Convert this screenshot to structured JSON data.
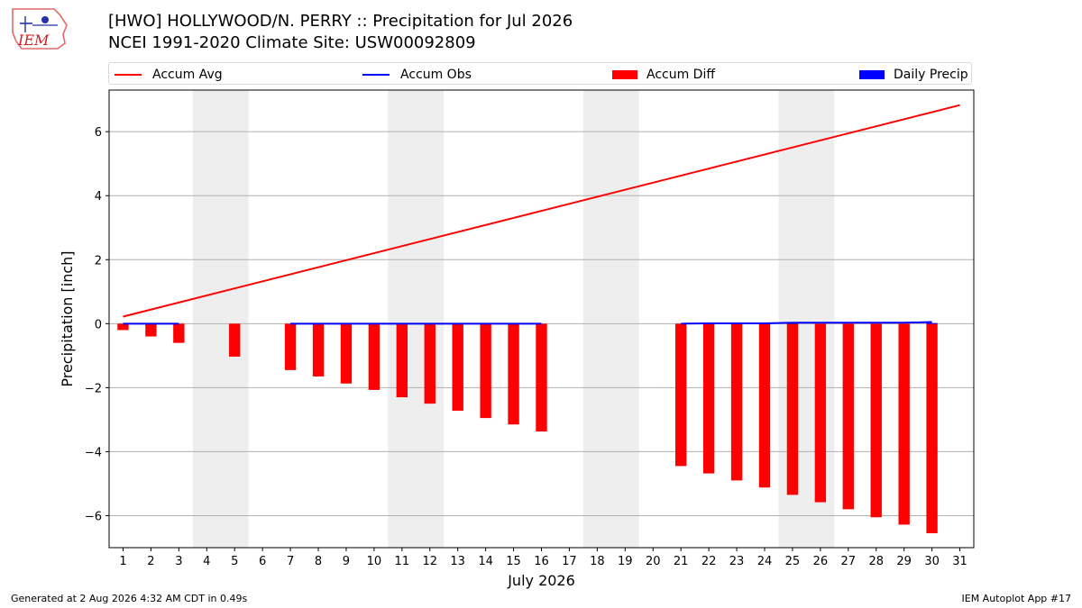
{
  "header": {
    "title_line1": "[HWO] HOLLYWOOD/N. PERRY :: Precipitation for Jul 2026",
    "title_line2": "NCEI 1991-2020 Climate Site: USW00092809",
    "logo_text": "IEM"
  },
  "footer": {
    "generated": "Generated at 2 Aug 2026 4:32 AM CDT in 0.49s",
    "app": "IEM Autoplot App #17"
  },
  "colors": {
    "accum_avg": "#ff0000",
    "accum_obs": "#0000ff",
    "accum_diff": "#ff0000",
    "daily_precip": "#0000ff",
    "weekend_shade": "#eeeeee",
    "grid": "#b0b0b0"
  },
  "chart_data": {
    "type": "bar",
    "xlabel": "July 2026",
    "ylabel": "Precipitation [inch]",
    "xlim": [
      0.5,
      31.5
    ],
    "ylim": [
      -7.0,
      7.3
    ],
    "yticks": [
      -6,
      -4,
      -2,
      0,
      2,
      4,
      6
    ],
    "xticks": [
      1,
      2,
      3,
      4,
      5,
      6,
      7,
      8,
      9,
      10,
      11,
      12,
      13,
      14,
      15,
      16,
      17,
      18,
      19,
      20,
      21,
      22,
      23,
      24,
      25,
      26,
      27,
      28,
      29,
      30,
      31
    ],
    "grid": "y",
    "legend": [
      "Accum Avg",
      "Accum Obs",
      "Accum Diff",
      "Daily Precip"
    ],
    "weekend_shading": [
      [
        3.5,
        5.5
      ],
      [
        10.5,
        12.5
      ],
      [
        17.5,
        19.5
      ],
      [
        24.5,
        26.5
      ]
    ],
    "accum_avg": {
      "name": "Accum Avg",
      "x": [
        1,
        31
      ],
      "y": [
        0.22,
        6.83
      ]
    },
    "accum_obs": {
      "name": "Accum Obs",
      "segments": [
        {
          "x": [
            1,
            2,
            3
          ],
          "y": [
            0.0,
            0.0,
            0.0
          ]
        },
        {
          "x": [
            7,
            8,
            9,
            10,
            11,
            12,
            13,
            14,
            15,
            16
          ],
          "y": [
            0.0,
            0.0,
            0.0,
            0.0,
            0.0,
            0.0,
            0.0,
            0.0,
            0.0,
            0.0
          ]
        },
        {
          "x": [
            21,
            22,
            23,
            24,
            25,
            26,
            27,
            28,
            29,
            30
          ],
          "y": [
            0.0,
            0.01,
            0.01,
            0.01,
            0.03,
            0.03,
            0.03,
            0.03,
            0.03,
            0.05
          ]
        }
      ]
    },
    "accum_diff": {
      "name": "Accum Diff",
      "x": [
        1,
        2,
        3,
        5,
        7,
        8,
        9,
        10,
        11,
        12,
        13,
        14,
        15,
        16,
        21,
        22,
        23,
        24,
        25,
        26,
        27,
        28,
        29,
        30
      ],
      "values": [
        -0.2,
        -0.4,
        -0.6,
        -1.03,
        -1.45,
        -1.65,
        -1.87,
        -2.07,
        -2.3,
        -2.5,
        -2.72,
        -2.95,
        -3.15,
        -3.37,
        -4.45,
        -4.68,
        -4.9,
        -5.12,
        -5.35,
        -5.58,
        -5.8,
        -6.05,
        -6.28,
        -6.55
      ]
    },
    "daily_precip": {
      "name": "Daily Precip",
      "x": [
        22,
        25,
        30
      ],
      "values": [
        0.01,
        0.02,
        0.02
      ]
    }
  }
}
